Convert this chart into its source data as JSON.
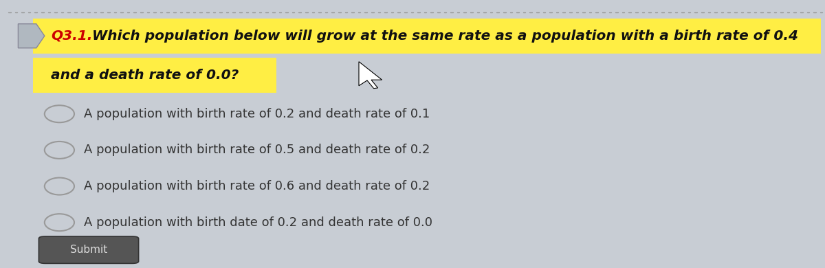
{
  "bg_color": "#c8cdd4",
  "panel_color": "#d8dde4",
  "question_label": "Q3.1.",
  "question_label_color": "#cc0000",
  "question_line1": "Which population below will grow at the same rate as a population with a birth rate of 0.4",
  "question_line2": "and a death rate of 0.0?",
  "question_highlight_color": "#ffee44",
  "question_text_color": "#111111",
  "question_fontsize": 14.5,
  "options": [
    "A population with birth rate of 0.2 and death rate of 0.1",
    "A population with birth rate of 0.5 and death rate of 0.2",
    "A population with birth rate of 0.6 and death rate of 0.2",
    "A population with birth date of 0.2 and death rate of 0.0"
  ],
  "options_color": "#333333",
  "options_fontsize": 13.0,
  "radio_color": "#999999",
  "submit_button_color": "#555555",
  "submit_text_color": "#dddddd",
  "submit_fontsize": 11,
  "dotted_line_color": "#999999"
}
